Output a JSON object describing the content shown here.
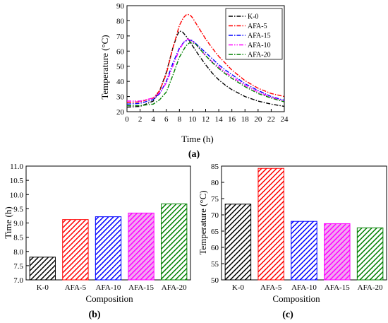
{
  "chart_data": [
    {
      "panel": "(a)",
      "type": "line",
      "xlabel": "Time (h)",
      "ylabel": "Temperature (°C)",
      "xlim": [
        0,
        24
      ],
      "ylim": [
        20,
        90
      ],
      "xticks": [
        0,
        2,
        4,
        6,
        8,
        10,
        12,
        14,
        16,
        18,
        20,
        22,
        24
      ],
      "yticks": [
        20,
        30,
        40,
        50,
        60,
        70,
        80,
        90
      ],
      "legend": "top-right",
      "series": [
        {
          "name": "K-0",
          "color": "#000000",
          "dash": "dash-dot",
          "points": [
            [
              0,
              23
            ],
            [
              2,
              23.5
            ],
            [
              4,
              27
            ],
            [
              5,
              34
            ],
            [
              6,
              46
            ],
            [
              7,
              62
            ],
            [
              7.6,
              70
            ],
            [
              8,
              73.3
            ],
            [
              8.5,
              72.5
            ],
            [
              9,
              70
            ],
            [
              9.5,
              67
            ],
            [
              10,
              63.5
            ],
            [
              11,
              57
            ],
            [
              12,
              51
            ],
            [
              13,
              45.5
            ],
            [
              14,
              41
            ],
            [
              15,
              37.5
            ],
            [
              16,
              34.5
            ],
            [
              18,
              30
            ],
            [
              20,
              27
            ],
            [
              22,
              25
            ],
            [
              24,
              23.5
            ]
          ]
        },
        {
          "name": "AFA-5",
          "color": "#ff0000",
          "dash": "dash-dot",
          "points": [
            [
              0,
              26
            ],
            [
              2,
              26.5
            ],
            [
              4,
              29
            ],
            [
              5,
              34
            ],
            [
              6,
              45
            ],
            [
              7,
              62
            ],
            [
              8,
              77
            ],
            [
              8.6,
              82
            ],
            [
              9.1,
              84.2
            ],
            [
              9.6,
              84
            ],
            [
              10,
              82
            ],
            [
              11,
              75
            ],
            [
              12,
              68
            ],
            [
              13,
              62
            ],
            [
              14,
              56.5
            ],
            [
              15,
              52
            ],
            [
              16,
              47.5
            ],
            [
              18,
              40.5
            ],
            [
              20,
              35.5
            ],
            [
              22,
              32
            ],
            [
              24,
              30
            ]
          ]
        },
        {
          "name": "AFA-15",
          "color": "#0000ff",
          "dash": "dash-dot",
          "points": [
            [
              0,
              25
            ],
            [
              2,
              25.5
            ],
            [
              4,
              28
            ],
            [
              5,
              32
            ],
            [
              6,
              40
            ],
            [
              7,
              52
            ],
            [
              8,
              62
            ],
            [
              8.7,
              66
            ],
            [
              9.3,
              67.3
            ],
            [
              10,
              67
            ],
            [
              11,
              63
            ],
            [
              12,
              59
            ],
            [
              13,
              55
            ],
            [
              14,
              51
            ],
            [
              15,
              47.5
            ],
            [
              16,
              44.5
            ],
            [
              18,
              38.5
            ],
            [
              20,
              34
            ],
            [
              22,
              30
            ],
            [
              24,
              27.5
            ]
          ]
        },
        {
          "name": "AFA-10",
          "color": "#ff00ff",
          "dash": "dash-dot-dot",
          "points": [
            [
              0,
              27
            ],
            [
              2,
              27
            ],
            [
              4,
              29
            ],
            [
              5,
              32.5
            ],
            [
              6,
              39
            ],
            [
              7,
              50
            ],
            [
              8,
              61
            ],
            [
              8.7,
              66
            ],
            [
              9.2,
              68
            ],
            [
              9.8,
              67
            ],
            [
              10.5,
              64.5
            ],
            [
              11,
              62
            ],
            [
              12,
              57
            ],
            [
              13,
              53
            ],
            [
              14,
              49.5
            ],
            [
              15,
              46
            ],
            [
              16,
              43
            ],
            [
              18,
              37.5
            ],
            [
              20,
              33
            ],
            [
              22,
              29.5
            ],
            [
              24,
              27
            ]
          ]
        },
        {
          "name": "AFA-20",
          "color": "#008000",
          "dash": "dash-dot",
          "points": [
            [
              0,
              24
            ],
            [
              2,
              24
            ],
            [
              4,
              25
            ],
            [
              5,
              28
            ],
            [
              6,
              33
            ],
            [
              7,
              44
            ],
            [
              8,
              56
            ],
            [
              9,
              63.5
            ],
            [
              9.7,
              66
            ],
            [
              10.5,
              64.5
            ],
            [
              11,
              62
            ],
            [
              12,
              57
            ],
            [
              13,
              52.5
            ],
            [
              14,
              48.5
            ],
            [
              15,
              45
            ],
            [
              16,
              42
            ],
            [
              18,
              36.5
            ],
            [
              20,
              32
            ],
            [
              22,
              29
            ],
            [
              24,
              26.5
            ]
          ]
        }
      ]
    },
    {
      "panel": "(b)",
      "type": "bar",
      "xlabel": "Composition",
      "ylabel": "Time (h)",
      "categories": [
        "K-0",
        "AFA-5",
        "AFA-10",
        "AFA-15",
        "AFA-20"
      ],
      "values": [
        7.8,
        9.12,
        9.22,
        9.35,
        9.67
      ],
      "colors": [
        "#000000",
        "#ff0000",
        "#0000ff",
        "#ff00ff",
        "#008000"
      ],
      "fills": [
        "#ffffff",
        "#ffffff",
        "#ffffff",
        "#f2a7f2",
        "#ffffff"
      ],
      "ylim": [
        7.0,
        11.0
      ],
      "yticks": [
        "7.0",
        "7.5",
        "8.0",
        "8.5",
        "9.0",
        "9.5",
        "10.0",
        "10.5",
        "11.0"
      ]
    },
    {
      "panel": "(c)",
      "type": "bar",
      "xlabel": "Composition",
      "ylabel": "Temperature (°C)",
      "categories": [
        "K-0",
        "AFA-5",
        "AFA-10",
        "AFA-15",
        "AFA-20"
      ],
      "values": [
        73.3,
        84.3,
        68.0,
        67.3,
        66.0
      ],
      "colors": [
        "#000000",
        "#ff0000",
        "#0000ff",
        "#ff00ff",
        "#008000"
      ],
      "fills": [
        "#ffffff",
        "#ffffff",
        "#ffffff",
        "#f2a7f2",
        "#ffffff"
      ],
      "ylim": [
        50,
        85
      ],
      "yticks": [
        "50",
        "55",
        "60",
        "65",
        "70",
        "75",
        "80",
        "85"
      ]
    }
  ]
}
